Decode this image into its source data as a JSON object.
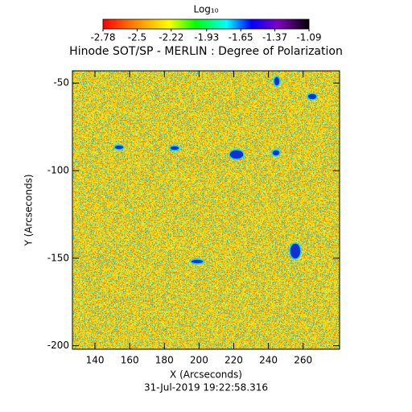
{
  "chart_data": {
    "type": "image",
    "title": "Hinode SOT/SP - MERLIN : Degree of Polarization",
    "xlabel": "X (Arcseconds)",
    "ylabel": "Y (Arcseconds)",
    "footer": "31-Jul-2019 19:22:58.316",
    "xlim": [
      127,
      281
    ],
    "xticks": [
      140,
      160,
      180,
      200,
      220,
      240,
      260
    ],
    "ylim": [
      -202,
      -43
    ],
    "yticks": [
      -50,
      -100,
      -150,
      -200
    ],
    "colorbar": {
      "label": "Log₁₀",
      "clim": [
        -2.78,
        -1.09
      ],
      "ticks": [
        -2.78,
        -2.5,
        {
          "value": -2.22,
          "label": "-2.22"
        },
        -1.93,
        -1.65,
        -1.37,
        -1.09
      ]
    }
  }
}
